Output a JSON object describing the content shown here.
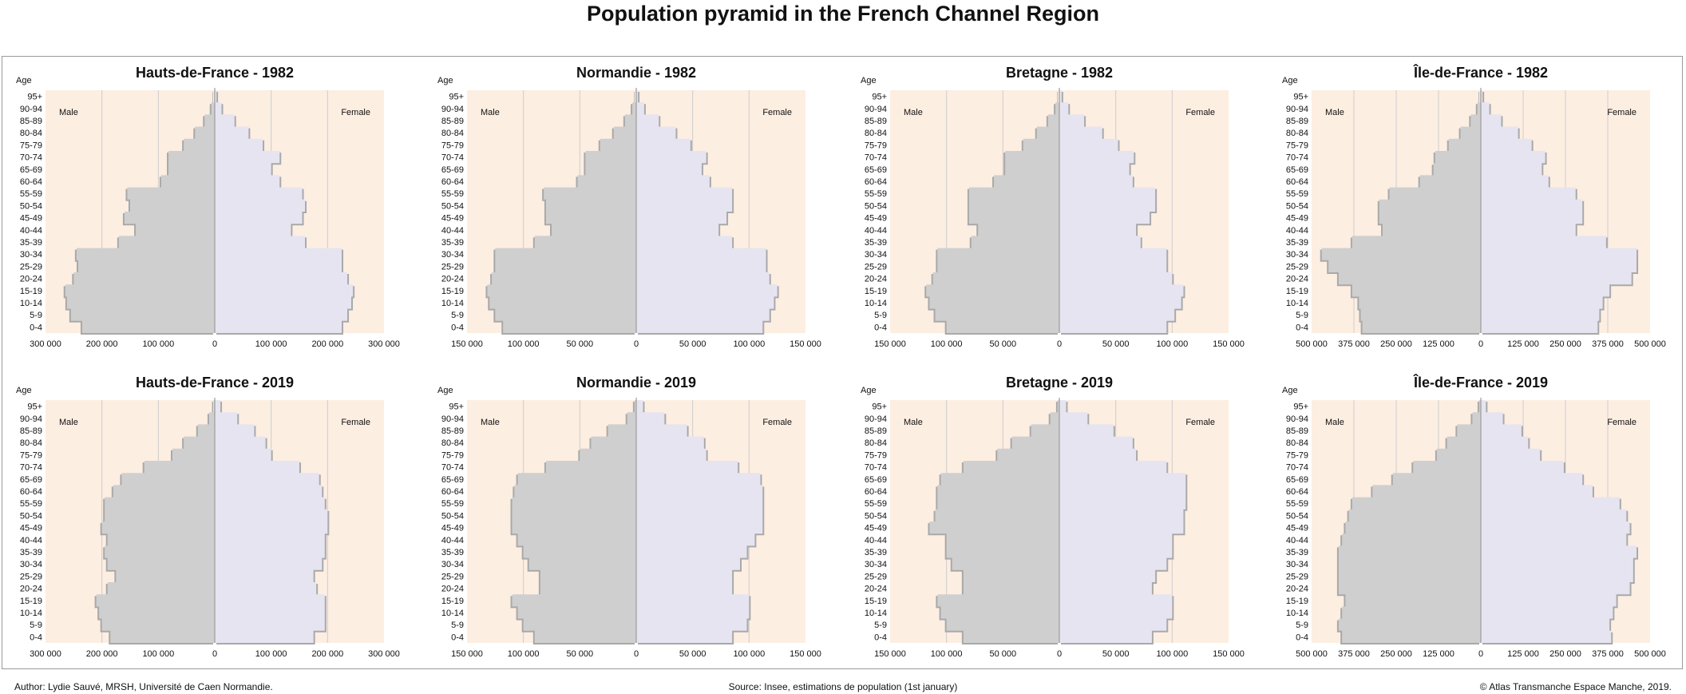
{
  "title": "Population pyramid in the French Channel Region",
  "footer": {
    "author": "Author: Lydie Sauvé, MRSH, Université de Caen Normandie.",
    "source": "Source: Insee, estimations de population (1st january)",
    "copyright": "© Atlas Transmanche Espace Manche, 2019."
  },
  "colors": {
    "panel_bg": "#fdeee2",
    "male_fill": "#cfcfcf",
    "female_fill": "#e6e4f0",
    "grid": "#cdcdcd",
    "axis": "#9c9c9c",
    "shadow": "#a9a9a9"
  },
  "chart_data": [
    {
      "type": "bar",
      "orientation": "horizontal",
      "title": "Hauts-de-France - 1982",
      "y_axis_label": "Age",
      "male_label": "Male",
      "female_label": "Female",
      "categories": [
        "0-4",
        "5-9",
        "10-14",
        "15-19",
        "20-24",
        "25-29",
        "30-34",
        "35-39",
        "40-44",
        "45-49",
        "50-54",
        "55-59",
        "60-64",
        "65-69",
        "70-74",
        "75-79",
        "80-84",
        "85-89",
        "90-94",
        "95+"
      ],
      "xlim": [
        -300000,
        300000
      ],
      "x_ticks": [
        -300000,
        -200000,
        -100000,
        0,
        100000,
        200000,
        300000
      ],
      "x_tick_labels": [
        "300 000",
        "200 000",
        "100 000",
        "0",
        "100 000",
        "200 000",
        "300 000"
      ],
      "series": [
        {
          "name": "Male",
          "values": [
            235000,
            255000,
            262000,
            265000,
            250000,
            242000,
            245000,
            170000,
            140000,
            160000,
            150000,
            155000,
            95000,
            82000,
            82000,
            55000,
            35000,
            18000,
            6000,
            1000
          ]
        },
        {
          "name": "Female",
          "values": [
            225000,
            235000,
            242000,
            245000,
            235000,
            225000,
            225000,
            160000,
            135000,
            155000,
            160000,
            155000,
            115000,
            100000,
            115000,
            85000,
            60000,
            35000,
            12000,
            3000
          ]
        }
      ]
    },
    {
      "type": "bar",
      "orientation": "horizontal",
      "title": "Normandie - 1982",
      "y_axis_label": "Age",
      "male_label": "Male",
      "female_label": "Female",
      "categories": [
        "0-4",
        "5-9",
        "10-14",
        "15-19",
        "20-24",
        "25-29",
        "30-34",
        "35-39",
        "40-44",
        "45-49",
        "50-54",
        "55-59",
        "60-64",
        "65-69",
        "70-74",
        "75-79",
        "80-84",
        "85-89",
        "90-94",
        "95+"
      ],
      "xlim": [
        -150000,
        150000
      ],
      "x_ticks": [
        -150000,
        -100000,
        -50000,
        0,
        50000,
        100000,
        150000
      ],
      "x_tick_labels": [
        "150 000",
        "100 000",
        "50 000",
        "0",
        "50 000",
        "100 000",
        "150 000"
      ],
      "series": [
        {
          "name": "Male",
          "values": [
            118000,
            125000,
            130000,
            132000,
            128000,
            125000,
            125000,
            90000,
            75000,
            80000,
            80000,
            82000,
            52000,
            45000,
            45000,
            32000,
            20000,
            10000,
            3500,
            500
          ]
        },
        {
          "name": "Female",
          "values": [
            112000,
            118000,
            122000,
            125000,
            118000,
            115000,
            115000,
            85000,
            73000,
            80000,
            85000,
            85000,
            65000,
            58000,
            62000,
            48000,
            35000,
            20000,
            7000,
            1500
          ]
        }
      ]
    },
    {
      "type": "bar",
      "orientation": "horizontal",
      "title": "Bretagne - 1982",
      "y_axis_label": "Age",
      "male_label": "Male",
      "female_label": "Female",
      "categories": [
        "0-4",
        "5-9",
        "10-14",
        "15-19",
        "20-24",
        "25-29",
        "30-34",
        "35-39",
        "40-44",
        "45-49",
        "50-54",
        "55-59",
        "60-64",
        "65-69",
        "70-74",
        "75-79",
        "80-84",
        "85-89",
        "90-94",
        "95+"
      ],
      "xlim": [
        -150000,
        150000
      ],
      "x_ticks": [
        -150000,
        -100000,
        -50000,
        0,
        50000,
        100000,
        150000
      ],
      "x_tick_labels": [
        "150 000",
        "100 000",
        "50 000",
        "0",
        "50 000",
        "100 000",
        "150 000"
      ],
      "series": [
        {
          "name": "Male",
          "values": [
            100000,
            110000,
            115000,
            118000,
            112000,
            108000,
            108000,
            78000,
            72000,
            80000,
            80000,
            80000,
            58000,
            48000,
            48000,
            32000,
            20000,
            10000,
            3500,
            500
          ]
        },
        {
          "name": "Female",
          "values": [
            95000,
            102000,
            108000,
            110000,
            100000,
            95000,
            95000,
            72000,
            68000,
            80000,
            85000,
            85000,
            65000,
            62000,
            66000,
            52000,
            38000,
            22000,
            8000,
            2000
          ]
        }
      ]
    },
    {
      "type": "bar",
      "orientation": "horizontal",
      "title": "Île-de-France - 1982",
      "y_axis_label": "Age",
      "male_label": "Male",
      "female_label": "Female",
      "categories": [
        "0-4",
        "5-9",
        "10-14",
        "15-19",
        "20-24",
        "25-29",
        "30-34",
        "35-39",
        "40-44",
        "45-49",
        "50-54",
        "55-59",
        "60-64",
        "65-69",
        "70-74",
        "75-79",
        "80-84",
        "85-89",
        "90-94",
        "95+"
      ],
      "xlim": [
        -500000,
        500000
      ],
      "x_ticks": [
        -500000,
        -375000,
        -250000,
        -125000,
        0,
        125000,
        250000,
        375000,
        500000
      ],
      "x_tick_labels": [
        "500 000",
        "375 000",
        "250 000",
        "125 000",
        "0",
        "125 000",
        "250 000",
        "375 000",
        "500 000"
      ],
      "series": [
        {
          "name": "Male",
          "values": [
            350000,
            355000,
            360000,
            380000,
            420000,
            450000,
            470000,
            380000,
            290000,
            300000,
            300000,
            270000,
            180000,
            140000,
            135000,
            95000,
            60000,
            30000,
            10000,
            2000
          ]
        },
        {
          "name": "Female",
          "values": [
            345000,
            350000,
            360000,
            380000,
            445000,
            460000,
            460000,
            370000,
            280000,
            300000,
            300000,
            280000,
            200000,
            180000,
            190000,
            150000,
            110000,
            60000,
            25000,
            5000
          ]
        }
      ]
    },
    {
      "type": "bar",
      "orientation": "horizontal",
      "title": "Hauts-de-France - 2019",
      "y_axis_label": "Age",
      "male_label": "Male",
      "female_label": "Female",
      "categories": [
        "0-4",
        "5-9",
        "10-14",
        "15-19",
        "20-24",
        "25-29",
        "30-34",
        "35-39",
        "40-44",
        "45-49",
        "50-54",
        "55-59",
        "60-64",
        "65-69",
        "70-74",
        "75-79",
        "80-84",
        "85-89",
        "90-94",
        "95+"
      ],
      "xlim": [
        -300000,
        300000
      ],
      "x_ticks": [
        -300000,
        -200000,
        -100000,
        0,
        100000,
        200000,
        300000
      ],
      "x_tick_labels": [
        "300 000",
        "200 000",
        "100 000",
        "0",
        "100 000",
        "200 000",
        "300 000"
      ],
      "series": [
        {
          "name": "Male",
          "values": [
            185000,
            200000,
            205000,
            210000,
            190000,
            175000,
            190000,
            195000,
            190000,
            200000,
            195000,
            195000,
            180000,
            165000,
            125000,
            75000,
            55000,
            30000,
            10000,
            2000
          ]
        },
        {
          "name": "Female",
          "values": [
            175000,
            195000,
            195000,
            195000,
            180000,
            175000,
            190000,
            195000,
            195000,
            200000,
            200000,
            195000,
            190000,
            185000,
            150000,
            100000,
            90000,
            70000,
            40000,
            10000
          ]
        }
      ]
    },
    {
      "type": "bar",
      "orientation": "horizontal",
      "title": "Normandie - 2019",
      "y_axis_label": "Age",
      "male_label": "Male",
      "female_label": "Female",
      "categories": [
        "0-4",
        "5-9",
        "10-14",
        "15-19",
        "20-24",
        "25-29",
        "30-34",
        "35-39",
        "40-44",
        "45-49",
        "50-54",
        "55-59",
        "60-64",
        "65-69",
        "70-74",
        "75-79",
        "80-84",
        "85-89",
        "90-94",
        "95+"
      ],
      "xlim": [
        -150000,
        150000
      ],
      "x_ticks": [
        -150000,
        -100000,
        -50000,
        0,
        50000,
        100000,
        150000
      ],
      "x_tick_labels": [
        "150 000",
        "100 000",
        "50 000",
        "0",
        "50 000",
        "100 000",
        "150 000"
      ],
      "series": [
        {
          "name": "Male",
          "values": [
            90000,
            100000,
            105000,
            110000,
            85000,
            85000,
            95000,
            100000,
            105000,
            110000,
            110000,
            110000,
            108000,
            105000,
            80000,
            50000,
            40000,
            25000,
            8000,
            1500
          ]
        },
        {
          "name": "Female",
          "values": [
            85000,
            98000,
            100000,
            100000,
            85000,
            85000,
            92000,
            98000,
            105000,
            112000,
            112000,
            112000,
            112000,
            110000,
            90000,
            62000,
            60000,
            45000,
            25000,
            6000
          ]
        }
      ]
    },
    {
      "type": "bar",
      "orientation": "horizontal",
      "title": "Bretagne - 2019",
      "y_axis_label": "Age",
      "male_label": "Male",
      "female_label": "Female",
      "categories": [
        "0-4",
        "5-9",
        "10-14",
        "15-19",
        "20-24",
        "25-29",
        "30-34",
        "35-39",
        "40-44",
        "45-49",
        "50-54",
        "55-59",
        "60-64",
        "65-69",
        "70-74",
        "75-79",
        "80-84",
        "85-89",
        "90-94",
        "95+"
      ],
      "xlim": [
        -150000,
        150000
      ],
      "x_ticks": [
        -150000,
        -100000,
        -50000,
        0,
        50000,
        100000,
        150000
      ],
      "x_tick_labels": [
        "150 000",
        "100 000",
        "50 000",
        "0",
        "50 000",
        "100 000",
        "150 000"
      ],
      "series": [
        {
          "name": "Male",
          "values": [
            85000,
            100000,
            105000,
            108000,
            85000,
            85000,
            95000,
            100000,
            100000,
            115000,
            110000,
            108000,
            108000,
            105000,
            85000,
            55000,
            42000,
            25000,
            8000,
            1500
          ]
        },
        {
          "name": "Female",
          "values": [
            82000,
            95000,
            100000,
            100000,
            82000,
            85000,
            95000,
            100000,
            100000,
            110000,
            110000,
            112000,
            112000,
            112000,
            95000,
            68000,
            65000,
            48000,
            25000,
            6000
          ]
        }
      ]
    },
    {
      "type": "bar",
      "orientation": "horizontal",
      "title": "Île-de-France - 2019",
      "y_axis_label": "Age",
      "male_label": "Male",
      "female_label": "Female",
      "categories": [
        "0-4",
        "5-9",
        "10-14",
        "15-19",
        "20-24",
        "25-29",
        "30-34",
        "35-39",
        "40-44",
        "45-49",
        "50-54",
        "55-59",
        "60-64",
        "65-69",
        "70-74",
        "75-79",
        "80-84",
        "85-89",
        "90-94",
        "95+"
      ],
      "xlim": [
        -500000,
        500000
      ],
      "x_ticks": [
        -500000,
        -375000,
        -250000,
        -125000,
        0,
        125000,
        250000,
        375000,
        500000
      ],
      "x_tick_labels": [
        "500 000",
        "375 000",
        "250 000",
        "125 000",
        "0",
        "125 000",
        "250 000",
        "375 000",
        "500 000"
      ],
      "series": [
        {
          "name": "Male",
          "values": [
            410000,
            420000,
            410000,
            400000,
            420000,
            420000,
            420000,
            420000,
            410000,
            400000,
            390000,
            380000,
            320000,
            260000,
            200000,
            130000,
            100000,
            70000,
            25000,
            5000
          ]
        },
        {
          "name": "Female",
          "values": [
            385000,
            380000,
            390000,
            400000,
            440000,
            450000,
            450000,
            460000,
            430000,
            440000,
            430000,
            410000,
            330000,
            300000,
            245000,
            175000,
            140000,
            120000,
            65000,
            15000
          ]
        }
      ]
    }
  ]
}
